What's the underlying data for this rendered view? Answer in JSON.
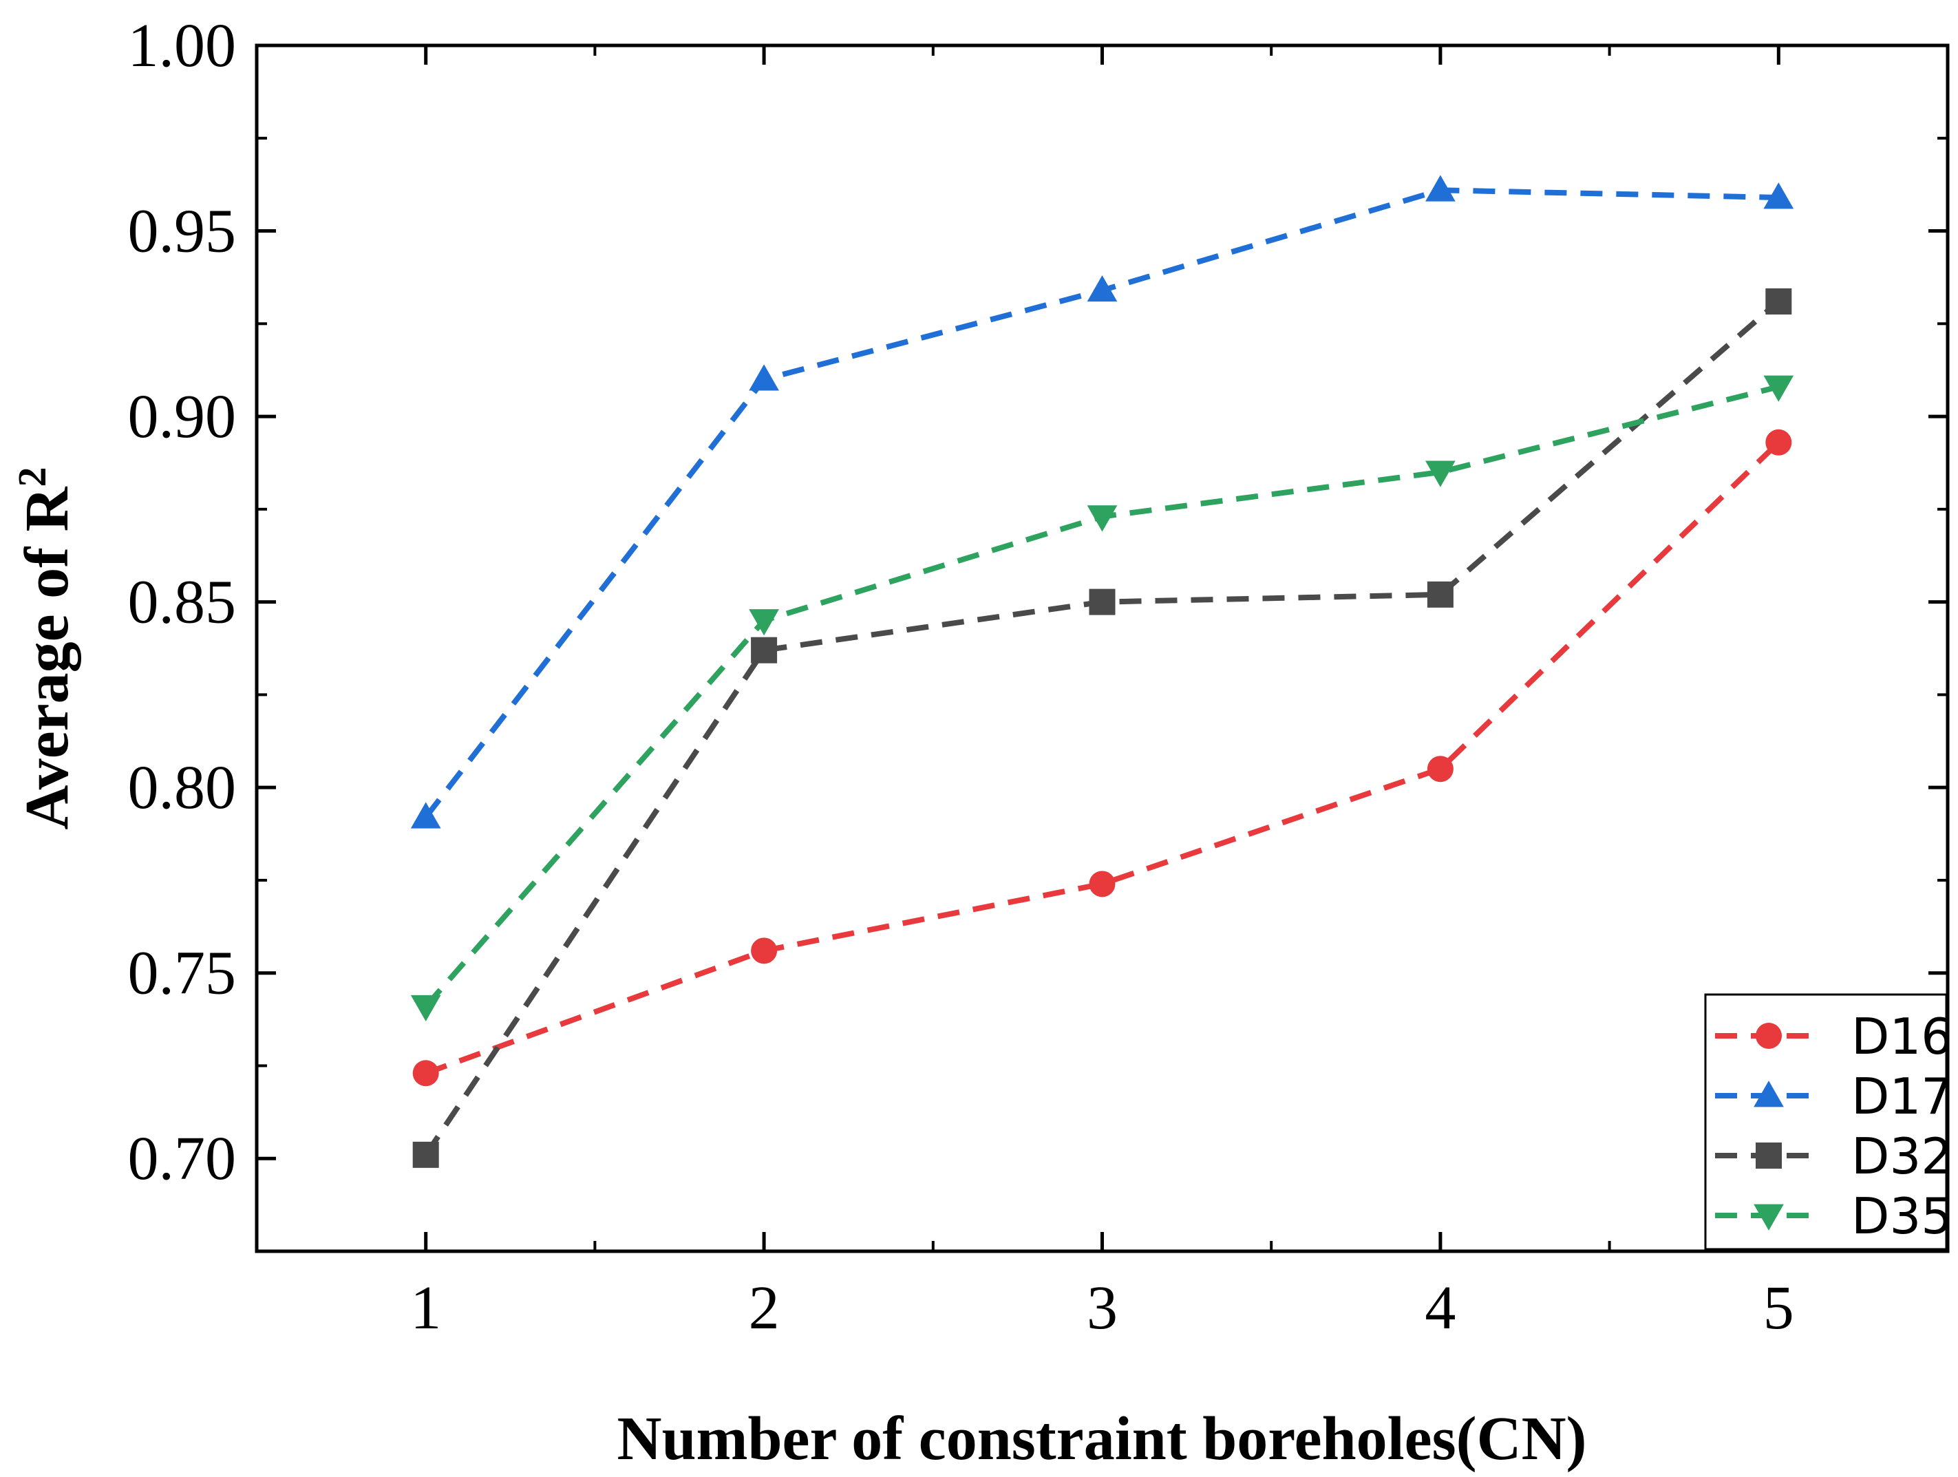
{
  "chart_data": {
    "type": "line",
    "title": "",
    "xlabel": "Number of constraint boreholes(CN)",
    "ylabel": "Average of R",
    "ylabel_superscript": "2",
    "x": [
      1,
      2,
      3,
      4,
      5
    ],
    "x_tick_labels": [
      "1",
      "2",
      "3",
      "4",
      "5"
    ],
    "xlim": [
      0.5,
      5.5
    ],
    "ylim": [
      0.675,
      1.0
    ],
    "y_ticks": [
      0.7,
      0.75,
      0.8,
      0.85,
      0.9,
      0.95,
      1.0
    ],
    "y_tick_labels": [
      "0.70",
      "0.75",
      "0.80",
      "0.85",
      "0.90",
      "0.95",
      "1.00"
    ],
    "grid": false,
    "legend_position": "bottom-right",
    "series": [
      {
        "name": "D16",
        "marker": "circle",
        "color": "#e8393d",
        "values": [
          0.723,
          0.756,
          0.774,
          0.805,
          0.893
        ]
      },
      {
        "name": "D17",
        "marker": "triangle-up",
        "color": "#1f6fd6",
        "values": [
          0.792,
          0.91,
          0.934,
          0.961,
          0.959
        ]
      },
      {
        "name": "D32",
        "marker": "square",
        "color": "#4a4a4a",
        "values": [
          0.701,
          0.837,
          0.85,
          0.852,
          0.931
        ]
      },
      {
        "name": "D35",
        "marker": "triangle-down",
        "color": "#2ea360",
        "values": [
          0.741,
          0.845,
          0.873,
          0.885,
          0.908
        ]
      }
    ]
  }
}
